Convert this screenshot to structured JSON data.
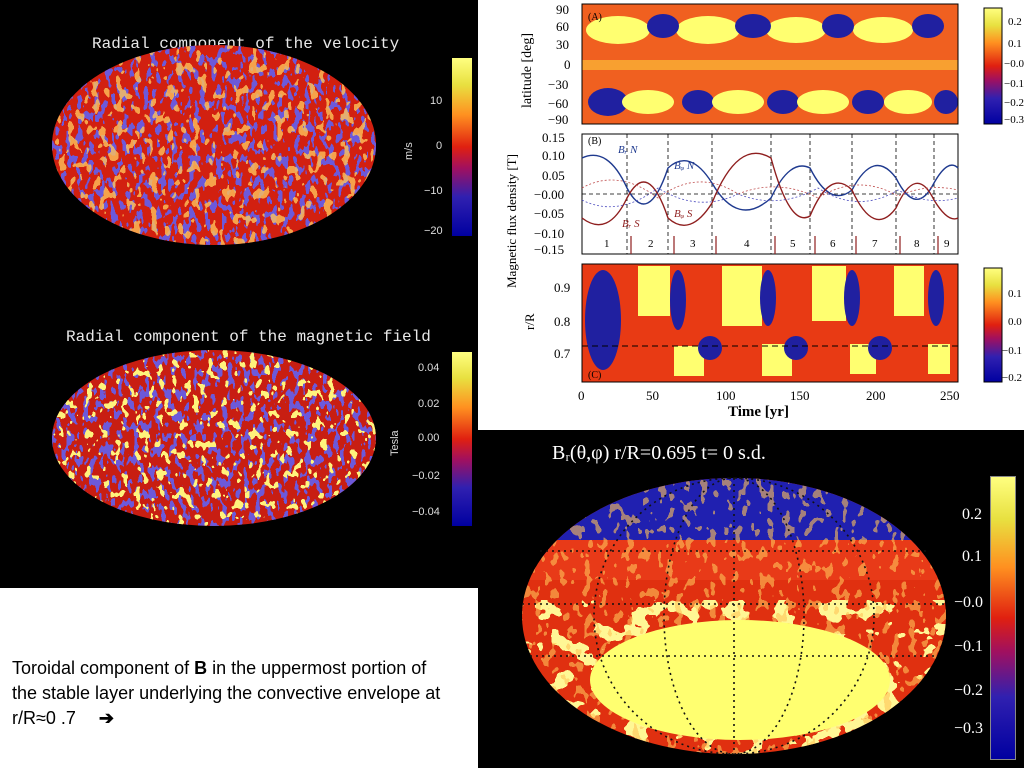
{
  "velocity": {
    "title": "Radial component of the velocity",
    "unit": "m/s",
    "ticks": [
      "10",
      "0",
      "−10",
      "−20"
    ]
  },
  "magnetic": {
    "title": "Radial component of the magnetic field",
    "unit": "Tesla",
    "ticks": [
      "0.04",
      "0.02",
      "0.00",
      "−0.02",
      "−0.04"
    ]
  },
  "panel_a": {
    "tag": "(A)",
    "ylabel": "latitude [deg]",
    "yticks": [
      "90",
      "60",
      "30",
      "0",
      "−30",
      "−60",
      "−90"
    ],
    "cbar_ticks": [
      "0.2",
      "0.1",
      "−0.0",
      "−0.1",
      "−0.2",
      "−0.3"
    ]
  },
  "panel_b": {
    "tag": "(B)",
    "ylabel": "Magnetic flux density [T]",
    "yticks": [
      "0.15",
      "0.10",
      "0.05",
      "−0.00",
      "−0.05",
      "−0.10",
      "−0.15"
    ],
    "cycles": [
      "1",
      "2",
      "3",
      "4",
      "5",
      "6",
      "7",
      "8",
      "9"
    ],
    "labels": [
      "Bᵣ N",
      "Bᵩ N",
      "Bᵣ S",
      "Bᵩ S"
    ]
  },
  "panel_c": {
    "tag": "(C)",
    "ylabel": "r/R",
    "yticks": [
      "0.9",
      "0.8",
      "0.7"
    ],
    "cbar_ticks": [
      "0.1",
      "0.0",
      "−0.1",
      "−0.2"
    ],
    "xticks": [
      "0",
      "50",
      "100",
      "150",
      "200",
      "250"
    ],
    "xlabel": "Time [yr]"
  },
  "toroidal_map": {
    "title": "Bᵣ(θ,φ)   r/R=0.695   t= 0 s.d.",
    "ticks": [
      "0.2",
      "0.1",
      "−0.0",
      "−0.1",
      "−0.2",
      "−0.3"
    ]
  },
  "caption": {
    "before": "Toroidal component of ",
    "bold": "B",
    "after": " in the uppermost portion of the stable layer underlying the convective envelope at r/R≈0 .7",
    "arrow": "➔"
  }
}
